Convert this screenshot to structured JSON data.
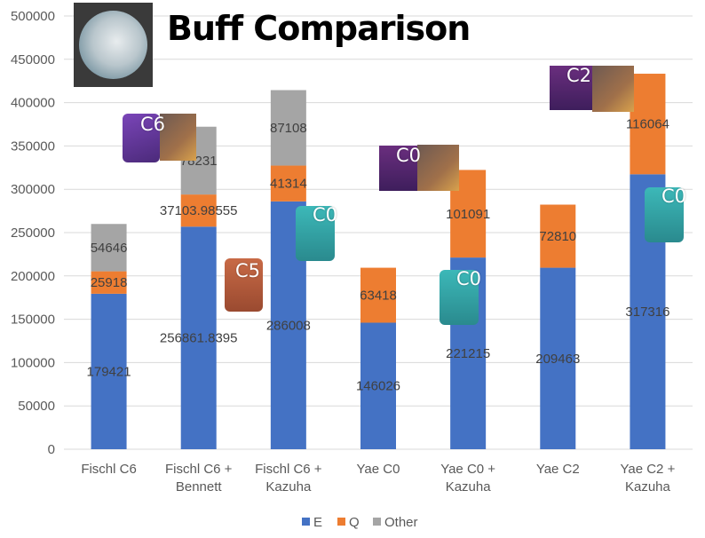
{
  "chart_data": {
    "type": "bar",
    "stacked": true,
    "title": "Buff Comparison",
    "categories": [
      [
        "Fischl C6"
      ],
      [
        "Fischl C6 +",
        "Bennett"
      ],
      [
        "Fischl C6 +",
        "Kazuha"
      ],
      [
        "Yae C0"
      ],
      [
        "Yae C0 +",
        "Kazuha"
      ],
      [
        "Yae C2"
      ],
      [
        "Yae C2 +",
        "Kazuha"
      ]
    ],
    "series": [
      {
        "name": "E",
        "color": "#4472C4",
        "values": [
          179421,
          256861.8395,
          286008,
          146026,
          221215,
          209463,
          317316
        ],
        "labels": [
          "179421",
          "256861.8395",
          "286008",
          "146026",
          "221215",
          "209463",
          "317316"
        ]
      },
      {
        "name": "Q",
        "color": "#ED7D31",
        "values": [
          25918,
          37103.98555,
          41314,
          63418,
          101091,
          72810,
          116064
        ],
        "labels": [
          "25918",
          "37103.98555",
          "41314",
          "63418",
          "101091",
          "72810",
          "116064"
        ]
      },
      {
        "name": "Other",
        "color": "#A5A5A5",
        "values": [
          54646,
          78231,
          87108,
          null,
          null,
          null,
          null
        ],
        "labels": [
          "54646",
          "78231",
          "87108",
          "",
          "",
          "",
          ""
        ]
      }
    ],
    "ylim": [
      0,
      500000
    ],
    "yticks": [
      "0",
      "50000",
      "100000",
      "150000",
      "200000",
      "250000",
      "300000",
      "350000",
      "400000",
      "450000",
      "500000"
    ],
    "grid": true,
    "legend_position": "bottom",
    "xlabel": "",
    "ylabel": ""
  },
  "annotations": {
    "fischl": "C6",
    "bennett": "C5",
    "kazuha1": "C0",
    "yae0": "C0",
    "kazuha2": "C0",
    "yae2": "C2",
    "kazuha3": "C0"
  }
}
